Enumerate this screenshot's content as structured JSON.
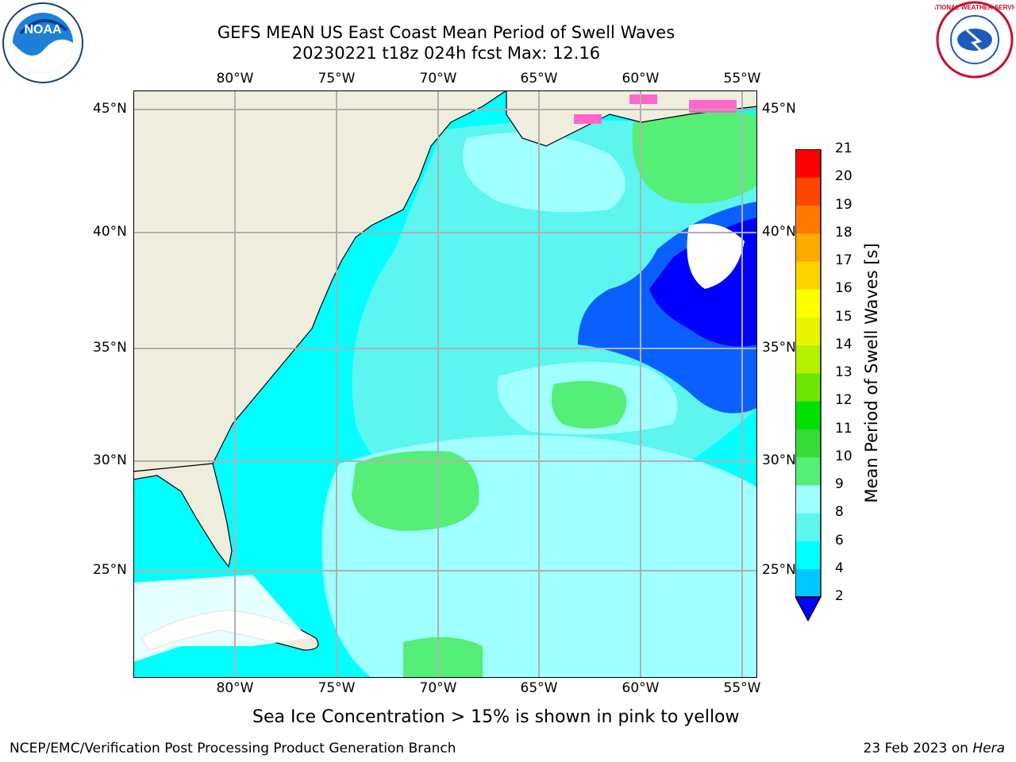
{
  "header": {
    "title_line1": "GEFS MEAN US East Coast Mean Period of Swell Waves",
    "title_line2": "20230221 t18z 024h fcst   Max: 12.16"
  },
  "logos": {
    "left": "noaa-logo",
    "left_text": "NOAA",
    "right": "national-weather-service-logo",
    "right_text": "NATIONAL WEATHER SERVICE"
  },
  "map": {
    "lon_labels": [
      "80°W",
      "75°W",
      "70°W",
      "65°W",
      "60°W",
      "55°W"
    ],
    "lat_labels": [
      "45°N",
      "40°N",
      "35°N",
      "30°N",
      "25°N"
    ],
    "colors": {
      "land": "#efedde",
      "ocean": "#00ffff",
      "grid": "#b0b0b0"
    }
  },
  "colorbar": {
    "title": "Mean Period of Swell Waves [s]",
    "ticks": [
      "2",
      "4",
      "6",
      "8",
      "9",
      "10",
      "11",
      "12",
      "13",
      "14",
      "15",
      "16",
      "17",
      "18",
      "19",
      "20",
      "21"
    ],
    "colors": [
      "#0a60ff",
      "#00c8ff",
      "#00ffff",
      "#5cf5f0",
      "#a0ffff",
      "#55ee77",
      "#37dc37",
      "#00e000",
      "#6ee600",
      "#b4f000",
      "#e8f500",
      "#ffff00",
      "#ffd200",
      "#ffaa00",
      "#ff7800",
      "#ff4600",
      "#ff0000"
    ],
    "under_color": "#0000ff"
  },
  "footer": {
    "note": "Sea Ice Concentration > 15% is shown in pink to yellow",
    "left": "NCEP/EMC/Verification Post Processing Product Generation Branch",
    "right_date": "23 Feb 2023 on ",
    "right_host": "Hera"
  }
}
